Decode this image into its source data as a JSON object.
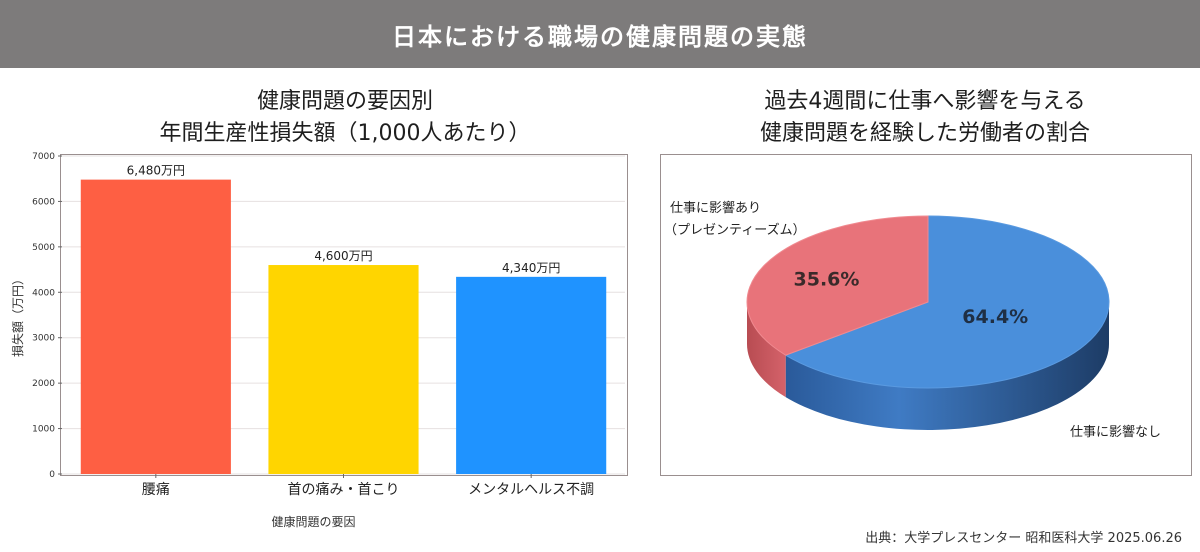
{
  "header": {
    "title": "日本における職場の健康問題の実態"
  },
  "colors": {
    "header_bg": "#7d7b7b",
    "bars": [
      "#fe5f43",
      "#ffd500",
      "#1f93ff"
    ],
    "pie_affected": "#e8737a",
    "pie_not_affected": "#4a8fdb"
  },
  "chart_data": [
    {
      "type": "bar",
      "title_lines": [
        "健康問題の要因別",
        "年間生産性損失額（1,000人あたり）"
      ],
      "categories": [
        "腰痛",
        "首の痛み・首こり",
        "メンタルヘルス不調"
      ],
      "values": [
        6480,
        4600,
        4340
      ],
      "data_labels": [
        "6,480万円",
        "4,600万円",
        "4,340万円"
      ],
      "xlabel": "健康問題の要因",
      "ylabel": "損失額（万円）",
      "ylim": [
        0,
        7000
      ],
      "yticks": [
        0,
        1000,
        2000,
        3000,
        4000,
        5000,
        6000,
        7000
      ],
      "grid": true
    },
    {
      "type": "pie",
      "title_lines": [
        "過去4週間に仕事へ影響を与える",
        "健康問題を経験した労働者の割合"
      ],
      "slices": [
        {
          "label_lines": [
            "仕事に影響あり",
            "（プレゼンティーズム）"
          ],
          "value": 35.6,
          "pct_label": "35.6%"
        },
        {
          "label_lines": [
            "仕事に影響なし"
          ],
          "value": 64.4,
          "pct_label": "64.4%"
        }
      ],
      "style": "3d"
    }
  ],
  "source": "出典：大学プレスセンター 昭和医科大学 2025.06.26"
}
